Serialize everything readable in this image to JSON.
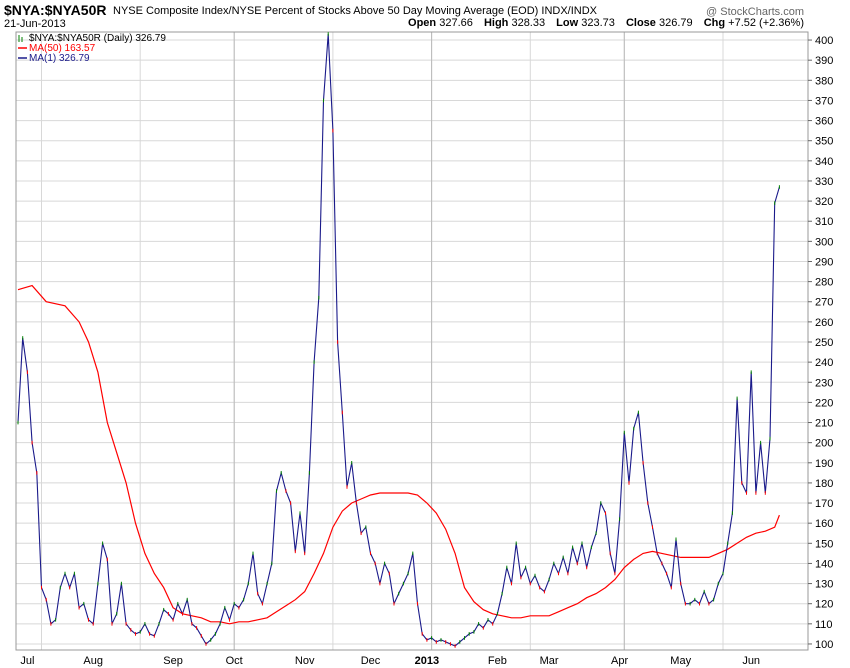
{
  "header": {
    "symbol": "$NYA:$NYA50R",
    "description": "NYSE Composite Index/NYSE Percent of Stocks Above 50 Day Moving Average (EOD)",
    "exchange": "INDX/INDX",
    "date": "21-Jun-2013",
    "watermark": "@ StockCharts.com",
    "open_label": "Open",
    "open": "327.66",
    "high_label": "High",
    "high": "328.33",
    "low_label": "Low",
    "low": "323.73",
    "close_label": "Close",
    "close": "326.79",
    "chg_label": "Chg",
    "chg": "+7.52 (+2.36%)"
  },
  "colors": {
    "price": "#1a1a8a",
    "ma50": "#ff0000",
    "grid": "#d8d8d8",
    "up": "#008000",
    "down": "#ff0000"
  },
  "chart_data": {
    "type": "line",
    "x_ticks": [
      "Jul",
      "Aug",
      "Sep",
      "Oct",
      "Nov",
      "Dec",
      "2013",
      "Feb",
      "Mar",
      "Apr",
      "May",
      "Jun"
    ],
    "y_ticks": [
      100,
      110,
      120,
      130,
      140,
      150,
      160,
      170,
      180,
      190,
      200,
      210,
      220,
      230,
      240,
      250,
      260,
      270,
      280,
      290,
      300,
      310,
      320,
      330,
      340,
      350,
      360,
      370,
      380,
      390,
      400
    ],
    "ylim": [
      97,
      404
    ],
    "legend": [
      {
        "name": "$NYA:$NYA50R (Daily) 326.79",
        "color": "#008000"
      },
      {
        "name": "MA(50) 163.57",
        "color": "#ff0000"
      },
      {
        "name": "MA(1) 326.79",
        "color": "#1a1a8a"
      }
    ],
    "series": [
      {
        "name": "MA(1) 326.79",
        "points": [
          [
            0,
            210
          ],
          [
            1,
            252
          ],
          [
            2,
            235
          ],
          [
            3,
            200
          ],
          [
            4,
            185
          ],
          [
            5,
            128
          ],
          [
            6,
            122
          ],
          [
            7,
            110
          ],
          [
            8,
            112
          ],
          [
            9,
            128
          ],
          [
            10,
            135
          ],
          [
            11,
            128
          ],
          [
            12,
            135
          ],
          [
            13,
            118
          ],
          [
            14,
            120
          ],
          [
            15,
            112
          ],
          [
            16,
            110
          ],
          [
            17,
            130
          ],
          [
            18,
            150
          ],
          [
            19,
            142
          ],
          [
            20,
            110
          ],
          [
            21,
            115
          ],
          [
            22,
            130
          ],
          [
            23,
            110
          ],
          [
            24,
            107
          ],
          [
            25,
            105
          ],
          [
            26,
            106
          ],
          [
            27,
            110
          ],
          [
            28,
            105
          ],
          [
            29,
            104
          ],
          [
            30,
            110
          ],
          [
            31,
            117
          ],
          [
            32,
            115
          ],
          [
            33,
            112
          ],
          [
            34,
            120
          ],
          [
            35,
            115
          ],
          [
            36,
            122
          ],
          [
            37,
            110
          ],
          [
            38,
            108
          ],
          [
            39,
            104
          ],
          [
            40,
            100
          ],
          [
            41,
            102
          ],
          [
            42,
            105
          ],
          [
            43,
            110
          ],
          [
            44,
            118
          ],
          [
            45,
            112
          ],
          [
            46,
            120
          ],
          [
            47,
            118
          ],
          [
            48,
            122
          ],
          [
            49,
            130
          ],
          [
            50,
            145
          ],
          [
            51,
            125
          ],
          [
            52,
            120
          ],
          [
            53,
            130
          ],
          [
            54,
            140
          ],
          [
            55,
            176
          ],
          [
            56,
            185
          ],
          [
            57,
            176
          ],
          [
            58,
            170
          ],
          [
            59,
            146
          ],
          [
            60,
            165
          ],
          [
            61,
            145
          ],
          [
            62,
            185
          ],
          [
            63,
            240
          ],
          [
            64,
            272
          ],
          [
            65,
            370
          ],
          [
            66,
            403
          ],
          [
            67,
            355
          ],
          [
            68,
            250
          ],
          [
            69,
            215
          ],
          [
            70,
            178
          ],
          [
            71,
            190
          ],
          [
            72,
            170
          ],
          [
            73,
            155
          ],
          [
            74,
            158
          ],
          [
            75,
            145
          ],
          [
            76,
            140
          ],
          [
            77,
            130
          ],
          [
            78,
            140
          ],
          [
            79,
            135
          ],
          [
            80,
            120
          ],
          [
            81,
            125
          ],
          [
            82,
            130
          ],
          [
            83,
            135
          ],
          [
            84,
            145
          ],
          [
            85,
            120
          ],
          [
            86,
            105
          ],
          [
            87,
            102
          ],
          [
            88,
            103
          ],
          [
            89,
            101
          ],
          [
            90,
            102
          ],
          [
            91,
            101
          ],
          [
            92,
            100
          ],
          [
            93,
            99
          ],
          [
            94,
            101
          ],
          [
            95,
            103
          ],
          [
            96,
            105
          ],
          [
            97,
            106
          ],
          [
            98,
            110
          ],
          [
            99,
            108
          ],
          [
            100,
            112
          ],
          [
            101,
            110
          ],
          [
            102,
            115
          ],
          [
            103,
            125
          ],
          [
            104,
            138
          ],
          [
            105,
            130
          ],
          [
            106,
            150
          ],
          [
            107,
            133
          ],
          [
            108,
            138
          ],
          [
            109,
            130
          ],
          [
            110,
            134
          ],
          [
            111,
            128
          ],
          [
            112,
            126
          ],
          [
            113,
            132
          ],
          [
            114,
            140
          ],
          [
            115,
            135
          ],
          [
            116,
            143
          ],
          [
            117,
            135
          ],
          [
            118,
            148
          ],
          [
            119,
            140
          ],
          [
            120,
            150
          ],
          [
            121,
            138
          ],
          [
            122,
            148
          ],
          [
            123,
            155
          ],
          [
            124,
            170
          ],
          [
            125,
            165
          ],
          [
            126,
            145
          ],
          [
            127,
            135
          ],
          [
            128,
            162
          ],
          [
            129,
            205
          ],
          [
            130,
            180
          ],
          [
            131,
            207
          ],
          [
            132,
            215
          ],
          [
            133,
            190
          ],
          [
            134,
            170
          ],
          [
            135,
            158
          ],
          [
            136,
            145
          ],
          [
            137,
            140
          ],
          [
            138,
            135
          ],
          [
            139,
            128
          ],
          [
            140,
            152
          ],
          [
            141,
            130
          ],
          [
            142,
            120
          ],
          [
            143,
            120
          ],
          [
            144,
            122
          ],
          [
            145,
            120
          ],
          [
            146,
            126
          ],
          [
            147,
            120
          ],
          [
            148,
            122
          ],
          [
            149,
            130
          ],
          [
            150,
            135
          ],
          [
            151,
            150
          ],
          [
            152,
            165
          ],
          [
            153,
            222
          ],
          [
            154,
            180
          ],
          [
            155,
            175
          ],
          [
            156,
            235
          ],
          [
            157,
            175
          ],
          [
            158,
            200
          ],
          [
            159,
            175
          ],
          [
            160,
            202
          ],
          [
            161,
            319
          ],
          [
            162,
            327
          ]
        ]
      },
      {
        "name": "MA(50) 163.57",
        "points": [
          [
            0,
            276
          ],
          [
            3,
            278
          ],
          [
            6,
            270
          ],
          [
            10,
            268
          ],
          [
            13,
            260
          ],
          [
            15,
            250
          ],
          [
            17,
            235
          ],
          [
            19,
            210
          ],
          [
            21,
            195
          ],
          [
            23,
            180
          ],
          [
            25,
            160
          ],
          [
            27,
            145
          ],
          [
            29,
            135
          ],
          [
            31,
            128
          ],
          [
            33,
            118
          ],
          [
            35,
            115
          ],
          [
            37,
            114
          ],
          [
            39,
            113
          ],
          [
            41,
            111
          ],
          [
            43,
            111
          ],
          [
            45,
            110
          ],
          [
            47,
            111
          ],
          [
            49,
            111
          ],
          [
            51,
            112
          ],
          [
            53,
            113
          ],
          [
            55,
            116
          ],
          [
            57,
            119
          ],
          [
            59,
            122
          ],
          [
            61,
            126
          ],
          [
            63,
            135
          ],
          [
            65,
            145
          ],
          [
            67,
            158
          ],
          [
            69,
            166
          ],
          [
            71,
            170
          ],
          [
            73,
            172
          ],
          [
            75,
            174
          ],
          [
            77,
            175
          ],
          [
            79,
            175
          ],
          [
            81,
            175
          ],
          [
            83,
            175
          ],
          [
            85,
            174
          ],
          [
            87,
            170
          ],
          [
            89,
            165
          ],
          [
            91,
            157
          ],
          [
            93,
            145
          ],
          [
            95,
            128
          ],
          [
            97,
            121
          ],
          [
            99,
            117
          ],
          [
            101,
            115
          ],
          [
            103,
            114
          ],
          [
            105,
            113
          ],
          [
            107,
            113
          ],
          [
            109,
            114
          ],
          [
            111,
            114
          ],
          [
            113,
            114
          ],
          [
            115,
            116
          ],
          [
            117,
            118
          ],
          [
            119,
            120
          ],
          [
            121,
            123
          ],
          [
            123,
            125
          ],
          [
            125,
            128
          ],
          [
            127,
            132
          ],
          [
            129,
            138
          ],
          [
            131,
            142
          ],
          [
            133,
            145
          ],
          [
            135,
            146
          ],
          [
            137,
            145
          ],
          [
            139,
            144
          ],
          [
            141,
            143
          ],
          [
            143,
            143
          ],
          [
            145,
            143
          ],
          [
            147,
            143
          ],
          [
            149,
            145
          ],
          [
            151,
            147
          ],
          [
            153,
            150
          ],
          [
            155,
            153
          ],
          [
            157,
            155
          ],
          [
            159,
            156
          ],
          [
            161,
            158
          ],
          [
            162,
            164
          ]
        ]
      }
    ]
  }
}
